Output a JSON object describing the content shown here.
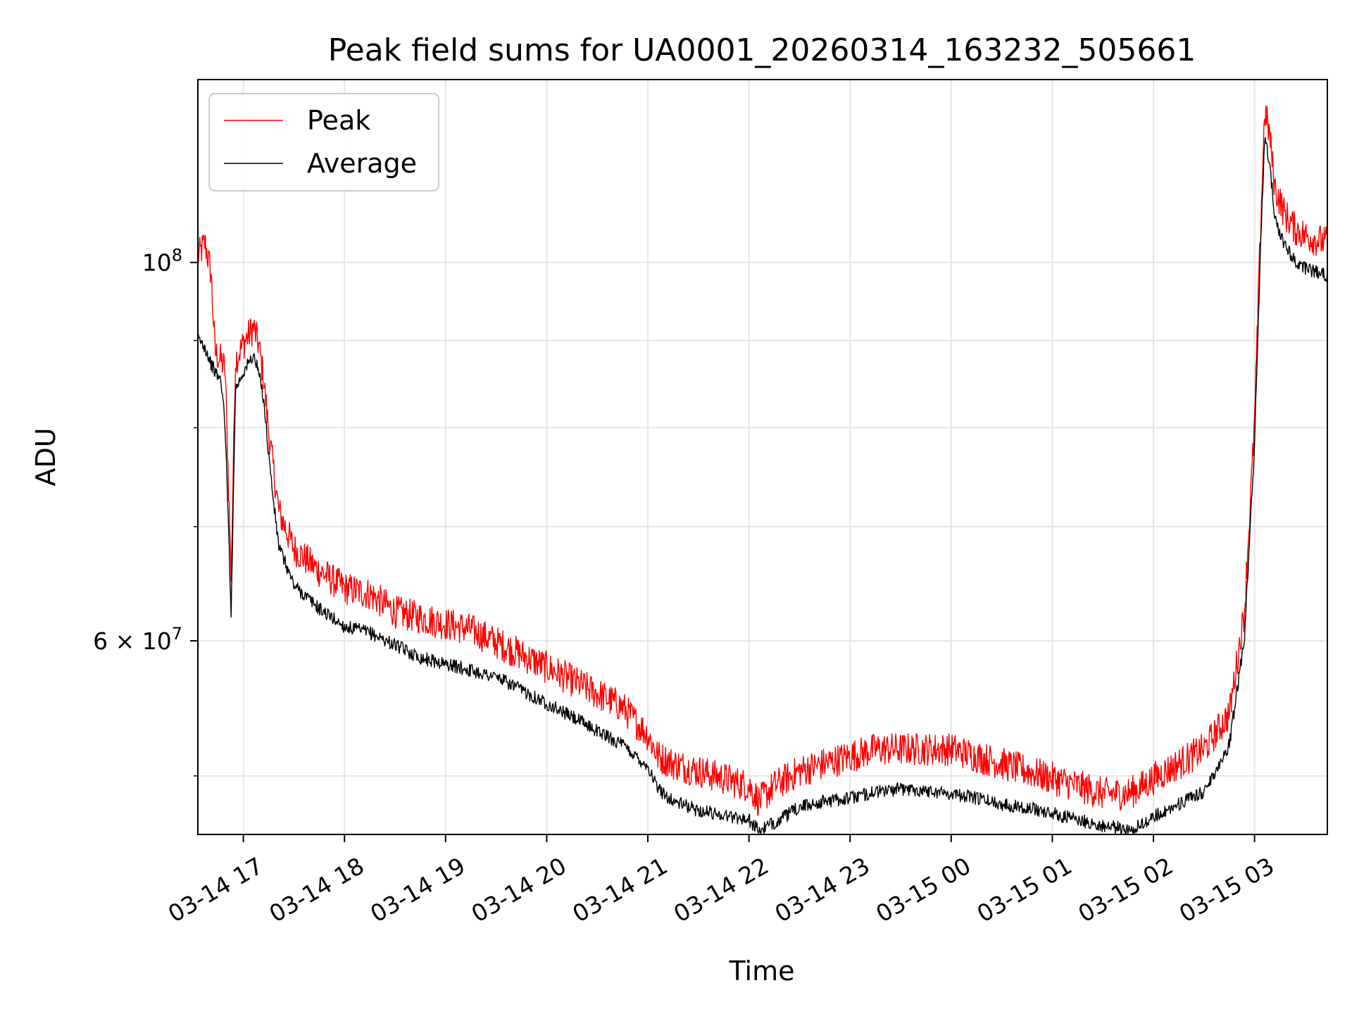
{
  "chart_data": {
    "type": "line",
    "title": "Peak field sums for UA0001_20260314_163232_505661",
    "xlabel": "Time",
    "ylabel": "ADU",
    "yscale": "log",
    "xlim": [
      16.55,
      27.72
    ],
    "ylim": [
      46200000,
      128000000
    ],
    "x_unit": "hours since 2026-03-14 00:00",
    "x_ticks": [
      {
        "value": 17,
        "label": "03-14 17"
      },
      {
        "value": 18,
        "label": "03-14 18"
      },
      {
        "value": 19,
        "label": "03-14 19"
      },
      {
        "value": 20,
        "label": "03-14 20"
      },
      {
        "value": 21,
        "label": "03-14 21"
      },
      {
        "value": 22,
        "label": "03-14 22"
      },
      {
        "value": 23,
        "label": "03-14 23"
      },
      {
        "value": 24,
        "label": "03-15 00"
      },
      {
        "value": 25,
        "label": "03-15 01"
      },
      {
        "value": 26,
        "label": "03-15 02"
      },
      {
        "value": 27,
        "label": "03-15 03"
      }
    ],
    "y_ticks_major": [
      {
        "value": 60000000,
        "label": "6 × 10",
        "exp": "7"
      },
      {
        "value": 100000000,
        "label": "10",
        "exp": "8"
      }
    ],
    "y_ticks_minor": [
      50000000,
      70000000,
      80000000,
      90000000
    ],
    "grid": true,
    "legend_position": "upper-left",
    "series": [
      {
        "name": "Peak",
        "color": "#ff0000",
        "x": [
          16.55,
          16.62,
          16.68,
          16.72,
          16.78,
          16.82,
          16.88,
          16.92,
          16.96,
          17.0,
          17.05,
          17.1,
          17.15,
          17.2,
          17.25,
          17.3,
          17.35,
          17.5,
          17.75,
          18.0,
          18.25,
          18.5,
          18.75,
          19.0,
          19.25,
          19.5,
          19.75,
          20.0,
          20.25,
          20.5,
          20.75,
          21.0,
          21.1,
          21.25,
          21.5,
          21.75,
          22.0,
          22.1,
          22.25,
          22.5,
          22.75,
          23.0,
          23.25,
          23.5,
          23.75,
          24.0,
          24.25,
          24.5,
          24.75,
          25.0,
          25.25,
          25.5,
          25.75,
          25.9,
          26.0,
          26.25,
          26.5,
          26.75,
          26.9,
          27.0,
          27.05,
          27.1,
          27.15,
          27.2,
          27.3,
          27.4,
          27.5,
          27.6,
          27.72
        ],
        "y": [
          100000000,
          102000000,
          98000000,
          88000000,
          87000000,
          86000000,
          65000000,
          87000000,
          88000000,
          89000000,
          90000000,
          91000000,
          89000000,
          85000000,
          79000000,
          75000000,
          71000000,
          67500000,
          65500000,
          64000000,
          63500000,
          62000000,
          61500000,
          61000000,
          60500000,
          59500000,
          58500000,
          57500000,
          56500000,
          55500000,
          54500000,
          52500000,
          51000000,
          50500000,
          50000000,
          49500000,
          49000000,
          48000000,
          49000000,
          50000000,
          50500000,
          51000000,
          51500000,
          51500000,
          51500000,
          51500000,
          51000000,
          50500000,
          50000000,
          49500000,
          49000000,
          48500000,
          48500000,
          49000000,
          49500000,
          50500000,
          51500000,
          54000000,
          62000000,
          80000000,
          100000000,
          122000000,
          118000000,
          110000000,
          106000000,
          104000000,
          103000000,
          102500000,
          102000000
        ]
      },
      {
        "name": "Average",
        "color": "#000000",
        "x": [
          16.55,
          16.62,
          16.68,
          16.72,
          16.78,
          16.82,
          16.88,
          16.92,
          16.96,
          17.0,
          17.05,
          17.1,
          17.15,
          17.2,
          17.25,
          17.3,
          17.35,
          17.5,
          17.75,
          18.0,
          18.25,
          18.5,
          18.75,
          19.0,
          19.25,
          19.5,
          19.75,
          20.0,
          20.25,
          20.5,
          20.75,
          21.0,
          21.1,
          21.25,
          21.5,
          21.75,
          22.0,
          22.1,
          22.25,
          22.5,
          22.75,
          23.0,
          23.25,
          23.5,
          23.75,
          24.0,
          24.25,
          24.5,
          24.75,
          25.0,
          25.25,
          25.5,
          25.75,
          25.9,
          26.0,
          26.25,
          26.5,
          26.75,
          26.9,
          27.0,
          27.05,
          27.1,
          27.15,
          27.2,
          27.3,
          27.4,
          27.5,
          27.6,
          27.72
        ],
        "y": [
          90000000,
          89000000,
          87000000,
          86000000,
          85000000,
          80000000,
          62000000,
          84000000,
          85000000,
          86000000,
          87000000,
          88000000,
          86000000,
          83000000,
          77000000,
          72000000,
          68000000,
          64500000,
          62500000,
          61000000,
          60500000,
          59500000,
          58500000,
          58000000,
          57500000,
          57000000,
          56000000,
          55000000,
          54000000,
          53000000,
          52000000,
          50500000,
          49000000,
          48200000,
          47600000,
          47300000,
          47000000,
          46300000,
          46800000,
          47800000,
          48200000,
          48400000,
          48800000,
          49000000,
          48900000,
          48700000,
          48400000,
          48000000,
          47800000,
          47400000,
          47000000,
          46600000,
          46400000,
          46700000,
          47200000,
          48000000,
          48800000,
          52000000,
          60000000,
          78000000,
          98000000,
          118000000,
          114000000,
          106000000,
          102000000,
          100000000,
          99000000,
          98500000,
          98000000
        ]
      }
    ]
  }
}
